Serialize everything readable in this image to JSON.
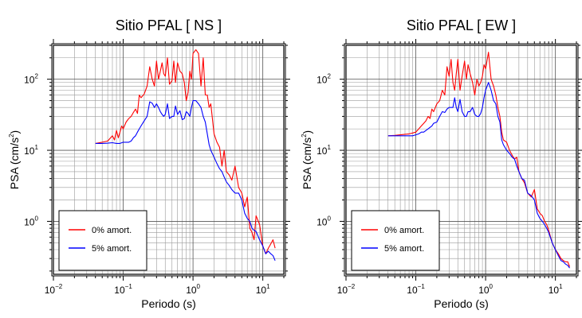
{
  "chart_data": [
    {
      "type": "line",
      "title": "Sitio PFAL [ NS ]",
      "xlabel": "Periodo (s)",
      "ylabel_main": "PSA (cm/s",
      "ylabel_sup": "2",
      "ylabel_close": ")",
      "xscale": "log",
      "yscale": "log",
      "xlim": [
        0.01,
        20
      ],
      "ylim": [
        0.18,
        300
      ],
      "grid": true,
      "legend_position": "bottom-left",
      "x_ticks": [
        {
          "base": "10",
          "exp": "−2"
        },
        {
          "base": "10",
          "exp": "−1"
        },
        {
          "base": "10",
          "exp": "0"
        },
        {
          "base": "10",
          "exp": "1"
        }
      ],
      "y_ticks": [
        {
          "base": "10",
          "exp": "0"
        },
        {
          "base": "10",
          "exp": "1"
        },
        {
          "base": "10",
          "exp": "2"
        }
      ],
      "series": [
        {
          "name": "0% amort.",
          "color": "#ff0000",
          "x": [
            0.04,
            0.05,
            0.06,
            0.07,
            0.075,
            0.08,
            0.085,
            0.09,
            0.095,
            0.1,
            0.11,
            0.12,
            0.13,
            0.14,
            0.15,
            0.16,
            0.17,
            0.18,
            0.2,
            0.22,
            0.24,
            0.26,
            0.28,
            0.3,
            0.32,
            0.34,
            0.36,
            0.38,
            0.4,
            0.43,
            0.46,
            0.5,
            0.53,
            0.56,
            0.6,
            0.65,
            0.7,
            0.75,
            0.8,
            0.85,
            0.9,
            0.95,
            1.0,
            1.1,
            1.2,
            1.3,
            1.4,
            1.5,
            1.6,
            1.7,
            1.8,
            2.0,
            2.2,
            2.4,
            2.6,
            2.8,
            3.0,
            3.3,
            3.6,
            4.0,
            4.5,
            5.0,
            5.5,
            6.0,
            6.5,
            7.0,
            7.5,
            8.0,
            9.0,
            10.0,
            11.0,
            12.0,
            13.0,
            14.0,
            15.0
          ],
          "y": [
            12.5,
            13,
            13.5,
            16,
            14,
            19,
            15,
            18,
            22,
            20,
            25,
            28,
            30,
            34,
            38,
            33,
            60,
            55,
            62,
            80,
            150,
            100,
            80,
            180,
            100,
            130,
            170,
            120,
            110,
            200,
            85,
            95,
            180,
            90,
            170,
            130,
            120,
            90,
            50,
            65,
            130,
            100,
            230,
            260,
            230,
            80,
            200,
            60,
            60,
            40,
            45,
            17,
            13,
            11,
            6,
            10,
            5,
            4.5,
            3.8,
            6,
            3,
            2.5,
            1.6,
            2.2,
            0.8,
            0.7,
            0.55,
            1.2,
            0.9,
            0.45,
            0.35,
            0.42,
            0.48,
            0.55,
            0.42
          ]
        },
        {
          "name": "5% amort.",
          "color": "#0000ff",
          "x": [
            0.04,
            0.05,
            0.06,
            0.07,
            0.08,
            0.09,
            0.1,
            0.11,
            0.12,
            0.13,
            0.14,
            0.15,
            0.16,
            0.17,
            0.18,
            0.2,
            0.22,
            0.24,
            0.26,
            0.28,
            0.3,
            0.32,
            0.34,
            0.36,
            0.38,
            0.4,
            0.43,
            0.46,
            0.5,
            0.53,
            0.56,
            0.6,
            0.65,
            0.7,
            0.75,
            0.8,
            0.85,
            0.9,
            0.95,
            1.0,
            1.1,
            1.2,
            1.3,
            1.4,
            1.5,
            1.6,
            1.7,
            1.8,
            2.0,
            2.2,
            2.4,
            2.6,
            2.8,
            3.0,
            3.3,
            3.6,
            4.0,
            4.5,
            5.0,
            5.5,
            6.0,
            6.5,
            7.0,
            7.5,
            8.0,
            9.0,
            10.0,
            11.0,
            12.0,
            13.0,
            14.0,
            15.0
          ],
          "y": [
            12.5,
            12.5,
            12.6,
            12.8,
            12.5,
            12.5,
            13,
            13,
            13,
            13.5,
            15,
            16,
            18,
            20,
            22,
            26,
            30,
            48,
            46,
            40,
            45,
            40,
            35,
            32,
            30,
            32,
            45,
            28,
            30,
            30,
            42,
            32,
            36,
            27,
            28,
            35,
            33,
            30,
            40,
            50,
            50,
            45,
            40,
            30,
            25,
            17,
            12,
            10,
            8,
            6.5,
            5.5,
            5,
            4.2,
            3.6,
            3.2,
            2.8,
            2.5,
            2.5,
            2,
            1.3,
            1.1,
            1.0,
            0.8,
            0.75,
            0.72,
            0.55,
            0.45,
            0.35,
            0.38,
            0.35,
            0.33,
            0.28
          ]
        }
      ]
    },
    {
      "type": "line",
      "title": "Sitio PFAL [ EW ]",
      "xlabel": "Periodo (s)",
      "ylabel_main": "PSA (cm/s",
      "ylabel_sup": "2",
      "ylabel_close": ")",
      "xscale": "log",
      "yscale": "log",
      "xlim": [
        0.01,
        20
      ],
      "ylim": [
        0.18,
        300
      ],
      "grid": true,
      "legend_position": "bottom-left",
      "x_ticks": [
        {
          "base": "10",
          "exp": "−2"
        },
        {
          "base": "10",
          "exp": "−1"
        },
        {
          "base": "10",
          "exp": "0"
        },
        {
          "base": "10",
          "exp": "1"
        }
      ],
      "y_ticks": [
        {
          "base": "10",
          "exp": "0"
        },
        {
          "base": "10",
          "exp": "1"
        },
        {
          "base": "10",
          "exp": "2"
        }
      ],
      "series": [
        {
          "name": "0% amort.",
          "color": "#ff0000",
          "x": [
            0.04,
            0.05,
            0.06,
            0.07,
            0.08,
            0.09,
            0.1,
            0.11,
            0.12,
            0.13,
            0.14,
            0.15,
            0.16,
            0.17,
            0.18,
            0.2,
            0.22,
            0.24,
            0.26,
            0.28,
            0.3,
            0.32,
            0.34,
            0.36,
            0.38,
            0.4,
            0.43,
            0.46,
            0.5,
            0.53,
            0.56,
            0.6,
            0.65,
            0.7,
            0.75,
            0.8,
            0.85,
            0.9,
            0.95,
            1.0,
            1.1,
            1.2,
            1.3,
            1.4,
            1.5,
            1.6,
            1.7,
            1.8,
            2.0,
            2.2,
            2.4,
            2.6,
            2.8,
            3.0,
            3.3,
            3.6,
            4.0,
            4.5,
            5.0,
            5.5,
            6.0,
            6.5,
            7.0,
            7.5,
            8.0,
            9.0,
            10.0,
            11.0,
            12.0,
            13.0,
            14.0,
            15.0,
            16.0
          ],
          "y": [
            16,
            16.2,
            16.5,
            16.8,
            17,
            17.5,
            18,
            20,
            22,
            24,
            26,
            30,
            28,
            38,
            35,
            45,
            50,
            70,
            60,
            150,
            110,
            190,
            90,
            70,
            120,
            190,
            70,
            110,
            180,
            100,
            160,
            120,
            90,
            60,
            100,
            80,
            90,
            110,
            160,
            140,
            240,
            100,
            80,
            60,
            40,
            30,
            18,
            14,
            13,
            10,
            8.5,
            7.5,
            8,
            5,
            4,
            3.5,
            2.5,
            2.2,
            2.8,
            1.5,
            1.3,
            1.2,
            1.0,
            0.9,
            0.75,
            0.5,
            0.4,
            0.35,
            0.3,
            0.28,
            0.27,
            0.27,
            0.23
          ]
        },
        {
          "name": "5% amort.",
          "color": "#0000ff",
          "x": [
            0.04,
            0.05,
            0.06,
            0.07,
            0.08,
            0.09,
            0.1,
            0.11,
            0.12,
            0.13,
            0.14,
            0.15,
            0.16,
            0.17,
            0.18,
            0.2,
            0.22,
            0.24,
            0.26,
            0.28,
            0.3,
            0.32,
            0.34,
            0.36,
            0.38,
            0.4,
            0.43,
            0.46,
            0.5,
            0.53,
            0.56,
            0.6,
            0.65,
            0.7,
            0.75,
            0.8,
            0.85,
            0.9,
            0.95,
            1.0,
            1.1,
            1.2,
            1.3,
            1.4,
            1.5,
            1.6,
            1.7,
            1.8,
            2.0,
            2.2,
            2.4,
            2.6,
            2.8,
            3.0,
            3.3,
            3.6,
            4.0,
            4.5,
            5.0,
            5.5,
            6.0,
            6.5,
            7.0,
            7.5,
            8.0,
            9.0,
            10.0,
            11.0,
            12.0,
            13.0,
            14.0,
            15.0,
            16.0
          ],
          "y": [
            16,
            16,
            16,
            16,
            16,
            16,
            16.5,
            17,
            18,
            18,
            19,
            20,
            21,
            22,
            24,
            25,
            30,
            35,
            34,
            38,
            40,
            40,
            40,
            55,
            40,
            35,
            52,
            35,
            30,
            30,
            35,
            35,
            40,
            32,
            30,
            30,
            33,
            40,
            55,
            70,
            90,
            70,
            50,
            45,
            30,
            25,
            14,
            12,
            10,
            9,
            8,
            7.5,
            6,
            5,
            4,
            3.8,
            2.5,
            2.3,
            2.0,
            1.3,
            1.1,
            1.0,
            0.9,
            0.8,
            0.7,
            0.5,
            0.4,
            0.33,
            0.28,
            0.27,
            0.25,
            0.24,
            0.22
          ]
        }
      ]
    }
  ]
}
